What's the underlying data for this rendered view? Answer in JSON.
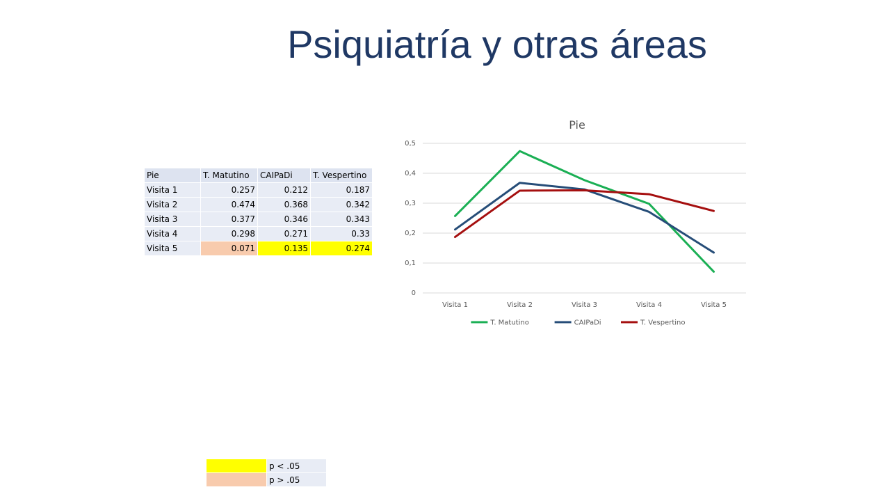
{
  "slide": {
    "title": "Psiquiatría y otras áreas"
  },
  "table": {
    "headers": [
      "Pie",
      "T. Matutino",
      "CAIPaDi",
      "T. Vespertino"
    ],
    "rows": [
      {
        "label": "Visita 1",
        "values": [
          "0.257",
          "0.212",
          "0.187"
        ]
      },
      {
        "label": "Visita 2",
        "values": [
          "0.474",
          "0.368",
          "0.342"
        ]
      },
      {
        "label": "Visita 3",
        "values": [
          "0.377",
          "0.346",
          "0.343"
        ]
      },
      {
        "label": "Visita 4",
        "values": [
          "0.298",
          "0.271",
          "0.33"
        ]
      },
      {
        "label": "Visita 5",
        "values": [
          "0.071",
          "0.135",
          "0.274"
        ],
        "highlights": [
          "#F8CBAD",
          "#FFFF00",
          "#FFFF00"
        ]
      }
    ]
  },
  "key": {
    "items": [
      {
        "color": "#FFFF00",
        "label": "p < .05"
      },
      {
        "color": "#F8CBAD",
        "label": "p > .05"
      }
    ]
  },
  "chart_data": {
    "type": "line",
    "title": "Pie",
    "categories": [
      "Visita 1",
      "Visita 2",
      "Visita 3",
      "Visita 4",
      "Visita 5"
    ],
    "series": [
      {
        "name": "T. Matutino",
        "color": "#1AAF54",
        "values": [
          0.257,
          0.474,
          0.377,
          0.298,
          0.071
        ]
      },
      {
        "name": "CAIPaDi",
        "color": "#264D78",
        "values": [
          0.212,
          0.368,
          0.346,
          0.271,
          0.135
        ]
      },
      {
        "name": "T. Vespertino",
        "color": "#A50F0F",
        "values": [
          0.187,
          0.342,
          0.343,
          0.33,
          0.274
        ]
      }
    ],
    "ylim": [
      0,
      0.5
    ],
    "yticks": [
      "0",
      "0,1",
      "0,2",
      "0,3",
      "0,4",
      "0,5"
    ],
    "xlabel": "",
    "ylabel": "",
    "grid": true,
    "legend": "bottom"
  }
}
